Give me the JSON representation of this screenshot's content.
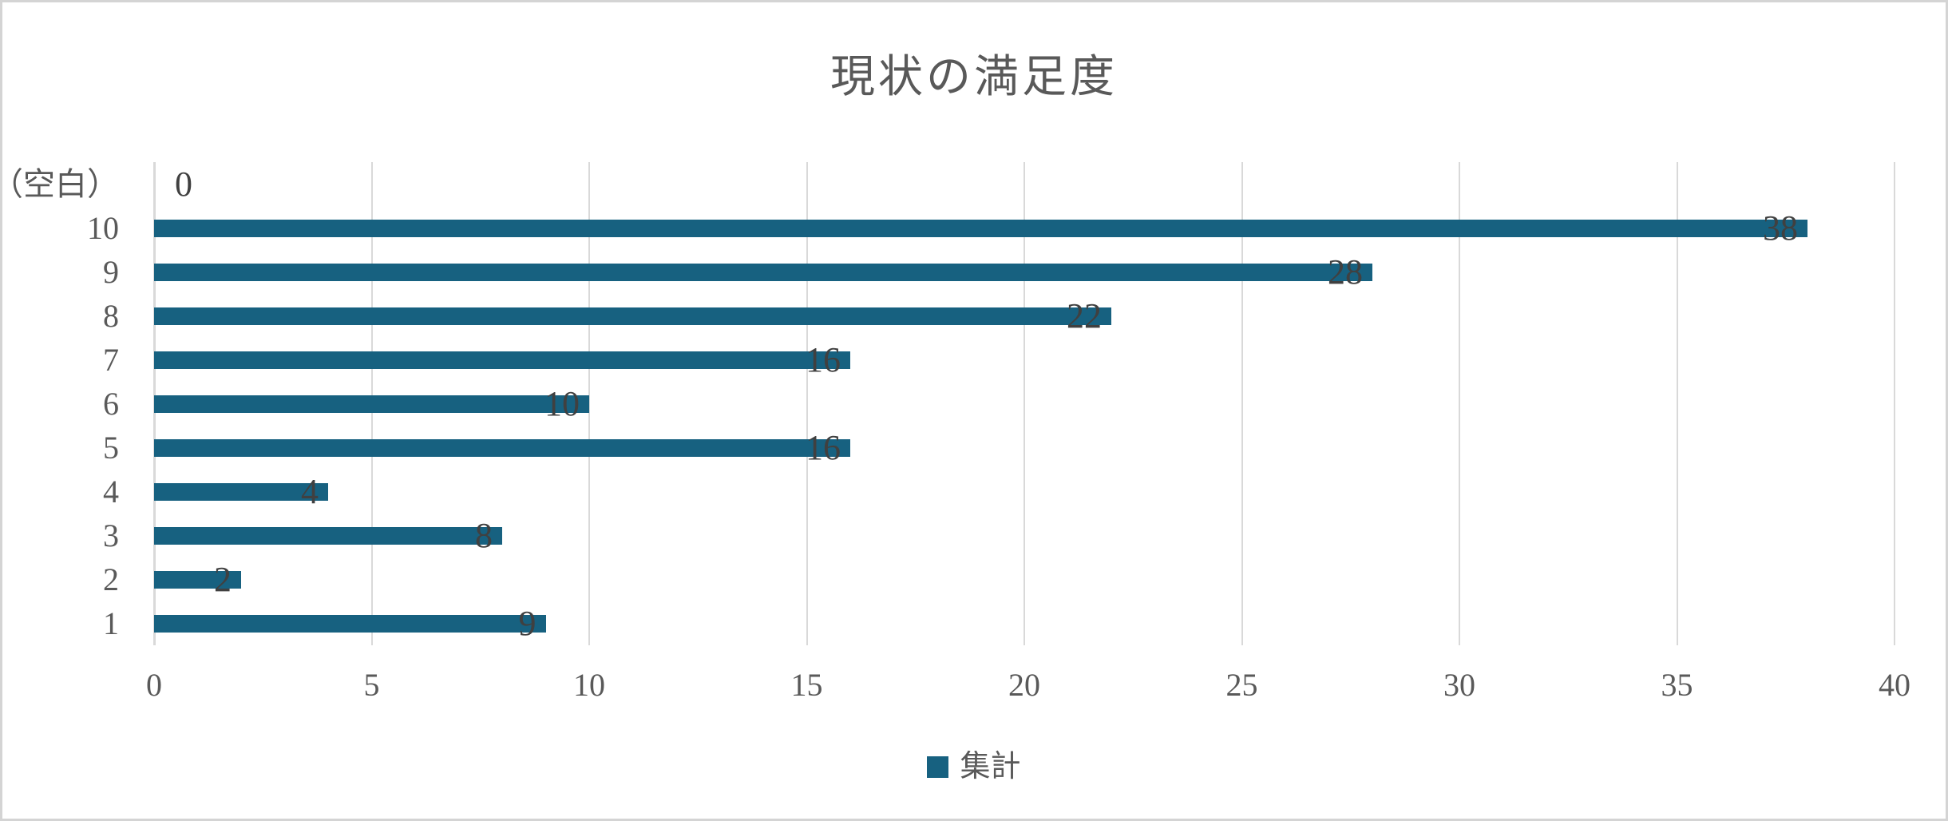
{
  "chart": {
    "title": "現状の満足度",
    "legend": {
      "label": "集計"
    },
    "colors": {
      "bar": "#176180",
      "axis_text": "#595959",
      "data_label_text": "#404040",
      "gridline": "#D9D9D9",
      "border": "#D4D4D4",
      "background": "#FFFFFF"
    }
  },
  "chart_data": {
    "type": "bar",
    "orientation": "horizontal",
    "title": "現状の満足度",
    "series": [
      {
        "name": "集計",
        "values": [
          0,
          38,
          28,
          22,
          16,
          10,
          16,
          4,
          8,
          2,
          9
        ]
      }
    ],
    "categories": [
      "（空白）",
      "10",
      "9",
      "8",
      "7",
      "6",
      "5",
      "4",
      "3",
      "2",
      "1"
    ],
    "data_labels": [
      0,
      38,
      28,
      22,
      16,
      10,
      16,
      4,
      8,
      2,
      9
    ],
    "xlabel": "",
    "ylabel": "",
    "xlim": [
      0,
      40
    ],
    "x_ticks": [
      0,
      5,
      10,
      15,
      20,
      25,
      30,
      35,
      40
    ],
    "grid": true,
    "legend_position": "bottom",
    "data_label_position": "inside-end"
  }
}
